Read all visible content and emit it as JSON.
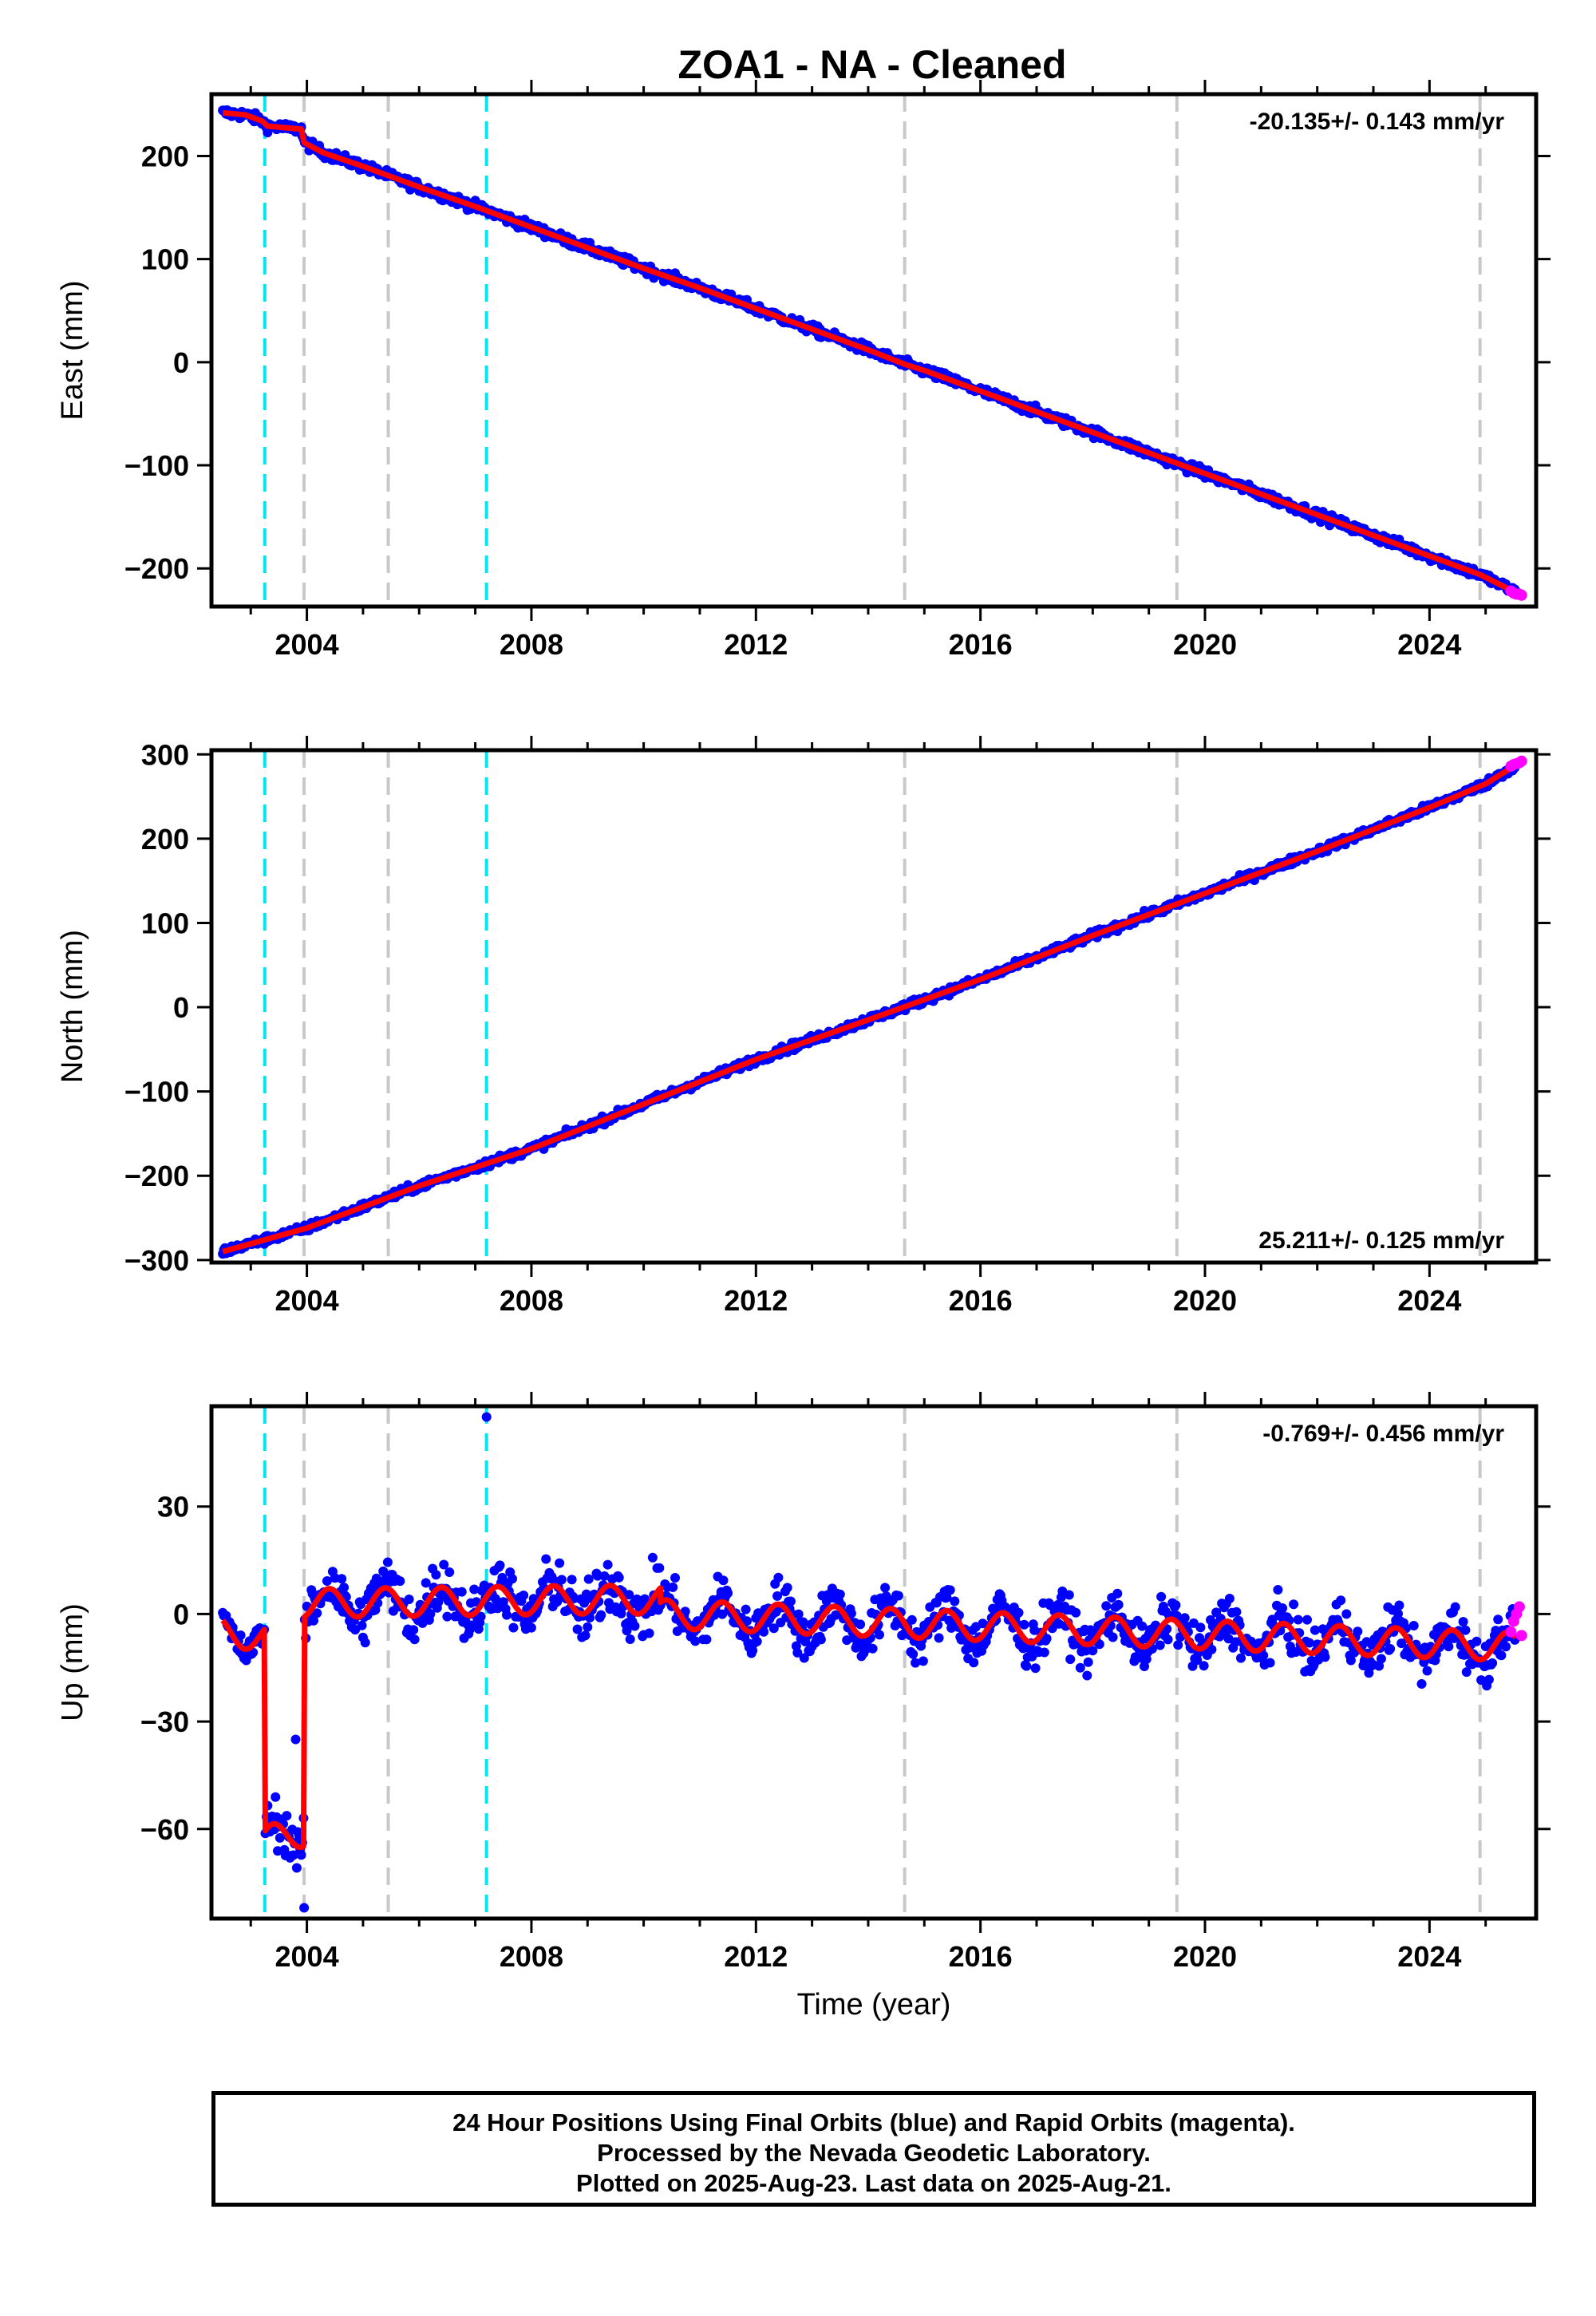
{
  "title": "ZOA1  - NA - Cleaned",
  "colors": {
    "final_orbits": "#0000ff",
    "rapid_orbits": "#ff00ff",
    "model": "#ff0000",
    "equipment_change": "#c8c8c8",
    "earthquake": "#00e5ee"
  },
  "footer": {
    "line1": "24 Hour Positions Using Final Orbits (blue) and Rapid Orbits (magenta).",
    "line2": "Processed by the Nevada Geodetic Laboratory.",
    "line3": "Plotted on 2025-Aug-23. Last data on 2025-Aug-21."
  },
  "chart_data": [
    {
      "type": "scatter",
      "ylabel": "East (mm)",
      "xlabel": "",
      "rate_label": "-20.135+/- 0.143 mm/yr",
      "rate_placement": "top-right",
      "xlim": [
        2002.3,
        2025.9
      ],
      "ylim": [
        -237,
        260
      ],
      "xticks": [
        2004,
        2008,
        2012,
        2016,
        2020,
        2024
      ],
      "yticks": [
        200,
        100,
        0,
        -100,
        -200
      ],
      "ytick_labels": [
        "200",
        "100",
        "0",
        "−100",
        "−200"
      ],
      "grid": false,
      "gray_lines": [
        2003.95,
        2005.45,
        2014.65,
        2019.5,
        2024.9
      ],
      "cyan_lines": [
        2003.25,
        2007.2
      ],
      "series": [
        {
          "type": "line",
          "role": "model",
          "x": [
            2002.5,
            2002.9,
            2003.2,
            2003.3,
            2003.9,
            2003.95,
            2004.3,
            2005.0,
            2006.0,
            2007.0,
            2008.0,
            2009.0,
            2010.0,
            2011.0,
            2012.0,
            2013.0,
            2014.0,
            2014.65,
            2015.0,
            2016.0,
            2017.0,
            2018.0,
            2019.0,
            2020.0,
            2021.0,
            2022.0,
            2023.0,
            2024.0,
            2024.9,
            2025.6
          ],
          "y": [
            242,
            240,
            234,
            229,
            226,
            213,
            203,
            190,
            170,
            151,
            131,
            111,
            91,
            72,
            52,
            32,
            12,
            -2,
            -8,
            -28,
            -48,
            -68,
            -88,
            -108,
            -128,
            -148,
            -168,
            -188,
            -206,
            -225
          ]
        },
        {
          "type": "scatter",
          "role": "final_orbits",
          "x_start": 2002.5,
          "x_end": 2025.55,
          "scatter_mm": 4
        },
        {
          "type": "scatter",
          "role": "rapid_orbits",
          "x": [
            2025.45,
            2025.5,
            2025.55,
            2025.6,
            2025.64
          ],
          "y": [
            -222,
            -224,
            -225,
            -225,
            -226
          ]
        }
      ]
    },
    {
      "type": "scatter",
      "ylabel": "North (mm)",
      "xlabel": "",
      "rate_label": "25.211+/- 0.125 mm/yr",
      "rate_placement": "bottom-right",
      "xlim": [
        2002.3,
        2025.9
      ],
      "ylim": [
        -303,
        305
      ],
      "xticks": [
        2004,
        2008,
        2012,
        2016,
        2020,
        2024
      ],
      "yticks": [
        300,
        200,
        100,
        0,
        -100,
        -200,
        -300
      ],
      "ytick_labels": [
        "300",
        "200",
        "100",
        "0",
        "−100",
        "−200",
        "−300"
      ],
      "grid": false,
      "gray_lines": [
        2003.95,
        2005.45,
        2014.65,
        2019.5,
        2024.9
      ],
      "cyan_lines": [
        2003.25,
        2007.2
      ],
      "series": [
        {
          "type": "line",
          "role": "model",
          "x": [
            2002.5,
            2004.0,
            2006.0,
            2008.0,
            2010.0,
            2012.0,
            2014.0,
            2016.0,
            2018.0,
            2020.0,
            2022.0,
            2024.0,
            2025.0,
            2025.6
          ],
          "y": [
            -290,
            -262,
            -212,
            -168,
            -115,
            -62,
            -15,
            33,
            85,
            135,
            185,
            237,
            265,
            290
          ]
        },
        {
          "type": "scatter",
          "role": "final_orbits",
          "x_start": 2002.5,
          "x_end": 2025.55,
          "scatter_mm": 4
        },
        {
          "type": "scatter",
          "role": "rapid_orbits",
          "x": [
            2025.45,
            2025.5,
            2025.55,
            2025.6,
            2025.64
          ],
          "y": [
            286,
            288,
            289,
            290,
            292
          ]
        }
      ]
    },
    {
      "type": "scatter",
      "ylabel": "Up (mm)",
      "xlabel": "Time (year)",
      "rate_label": "-0.769+/- 0.456 mm/yr",
      "rate_placement": "top-right",
      "xlim": [
        2002.3,
        2025.9
      ],
      "ylim": [
        -85,
        58
      ],
      "xticks": [
        2004,
        2008,
        2012,
        2016,
        2020,
        2024
      ],
      "yticks": [
        30,
        0,
        -30,
        -60
      ],
      "ytick_labels": [
        "30",
        "0",
        "−30",
        "−60"
      ],
      "grid": false,
      "gray_lines": [
        2003.95,
        2005.45,
        2014.65,
        2019.5,
        2024.9
      ],
      "cyan_lines": [
        2003.25,
        2007.2
      ],
      "annual_amplitude_mm": 5,
      "segments": [
        {
          "x_start": 2002.5,
          "x_end": 2003.24,
          "base": -5,
          "slope": -2,
          "scatter_mm": 4
        },
        {
          "x_start": 2003.26,
          "x_end": 2003.94,
          "base": -63,
          "slope": 3,
          "scatter_mm": 6
        },
        {
          "x_start": 2003.96,
          "x_end": 2009.0,
          "base": 3,
          "slope": 0.2,
          "scatter_mm": 7
        },
        {
          "x_start": 2009.0,
          "x_end": 2010.3,
          "base": 4,
          "slope": 0,
          "scatter_mm": 8
        },
        {
          "x_start": 2010.3,
          "x_end": 2025.55,
          "base": 0,
          "slope": -0.6,
          "scatter_mm": 6
        }
      ],
      "outliers": [
        [
          2007.2,
          55
        ],
        [
          2003.95,
          -82
        ],
        [
          2003.8,
          -35
        ]
      ],
      "series": [
        {
          "type": "scatter",
          "role": "rapid_orbits",
          "x": [
            2025.45,
            2025.5,
            2025.55,
            2025.6,
            2025.64
          ],
          "y": [
            -5,
            -2,
            0,
            2,
            -6
          ]
        }
      ]
    }
  ]
}
